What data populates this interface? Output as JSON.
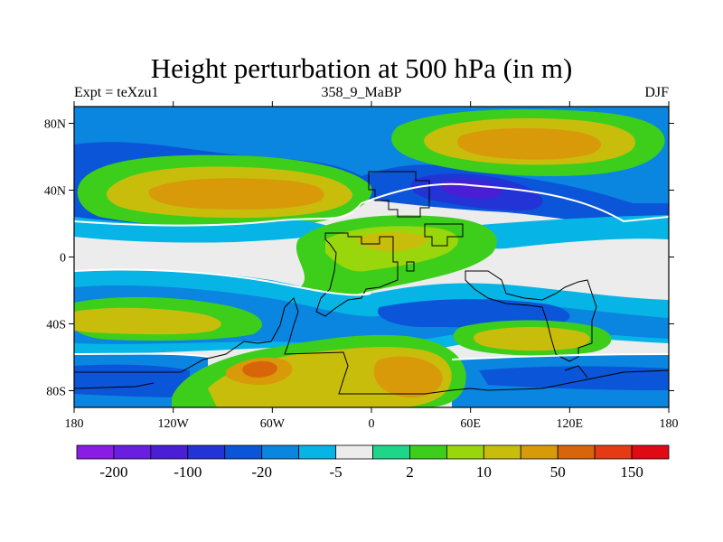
{
  "title": "Height perturbation at 500 hPa (in m)",
  "left_label": "Expt = teXzu1",
  "center_label": "358_9_MaBP",
  "right_label": "DJF",
  "map": {
    "lon_ticks": [
      "180",
      "120W",
      "60W",
      "0",
      "60E",
      "120E",
      "180"
    ],
    "lat_ticks": [
      "80N",
      "40N",
      "0",
      "40S",
      "80S"
    ]
  },
  "colorbar": {
    "colors": [
      "#8a1ce4",
      "#6a1ee0",
      "#4a1ed4",
      "#2433d6",
      "#0b55d8",
      "#0a85e0",
      "#06b4e6",
      "#ececec",
      "#1dd68a",
      "#3dce1c",
      "#9ad60c",
      "#c9bd0c",
      "#d99a0a",
      "#d9650a",
      "#e63a14",
      "#e00a14"
    ],
    "labels": [
      "-200",
      "-100",
      "-20",
      "-5",
      "2",
      "10",
      "50",
      "150"
    ]
  }
}
